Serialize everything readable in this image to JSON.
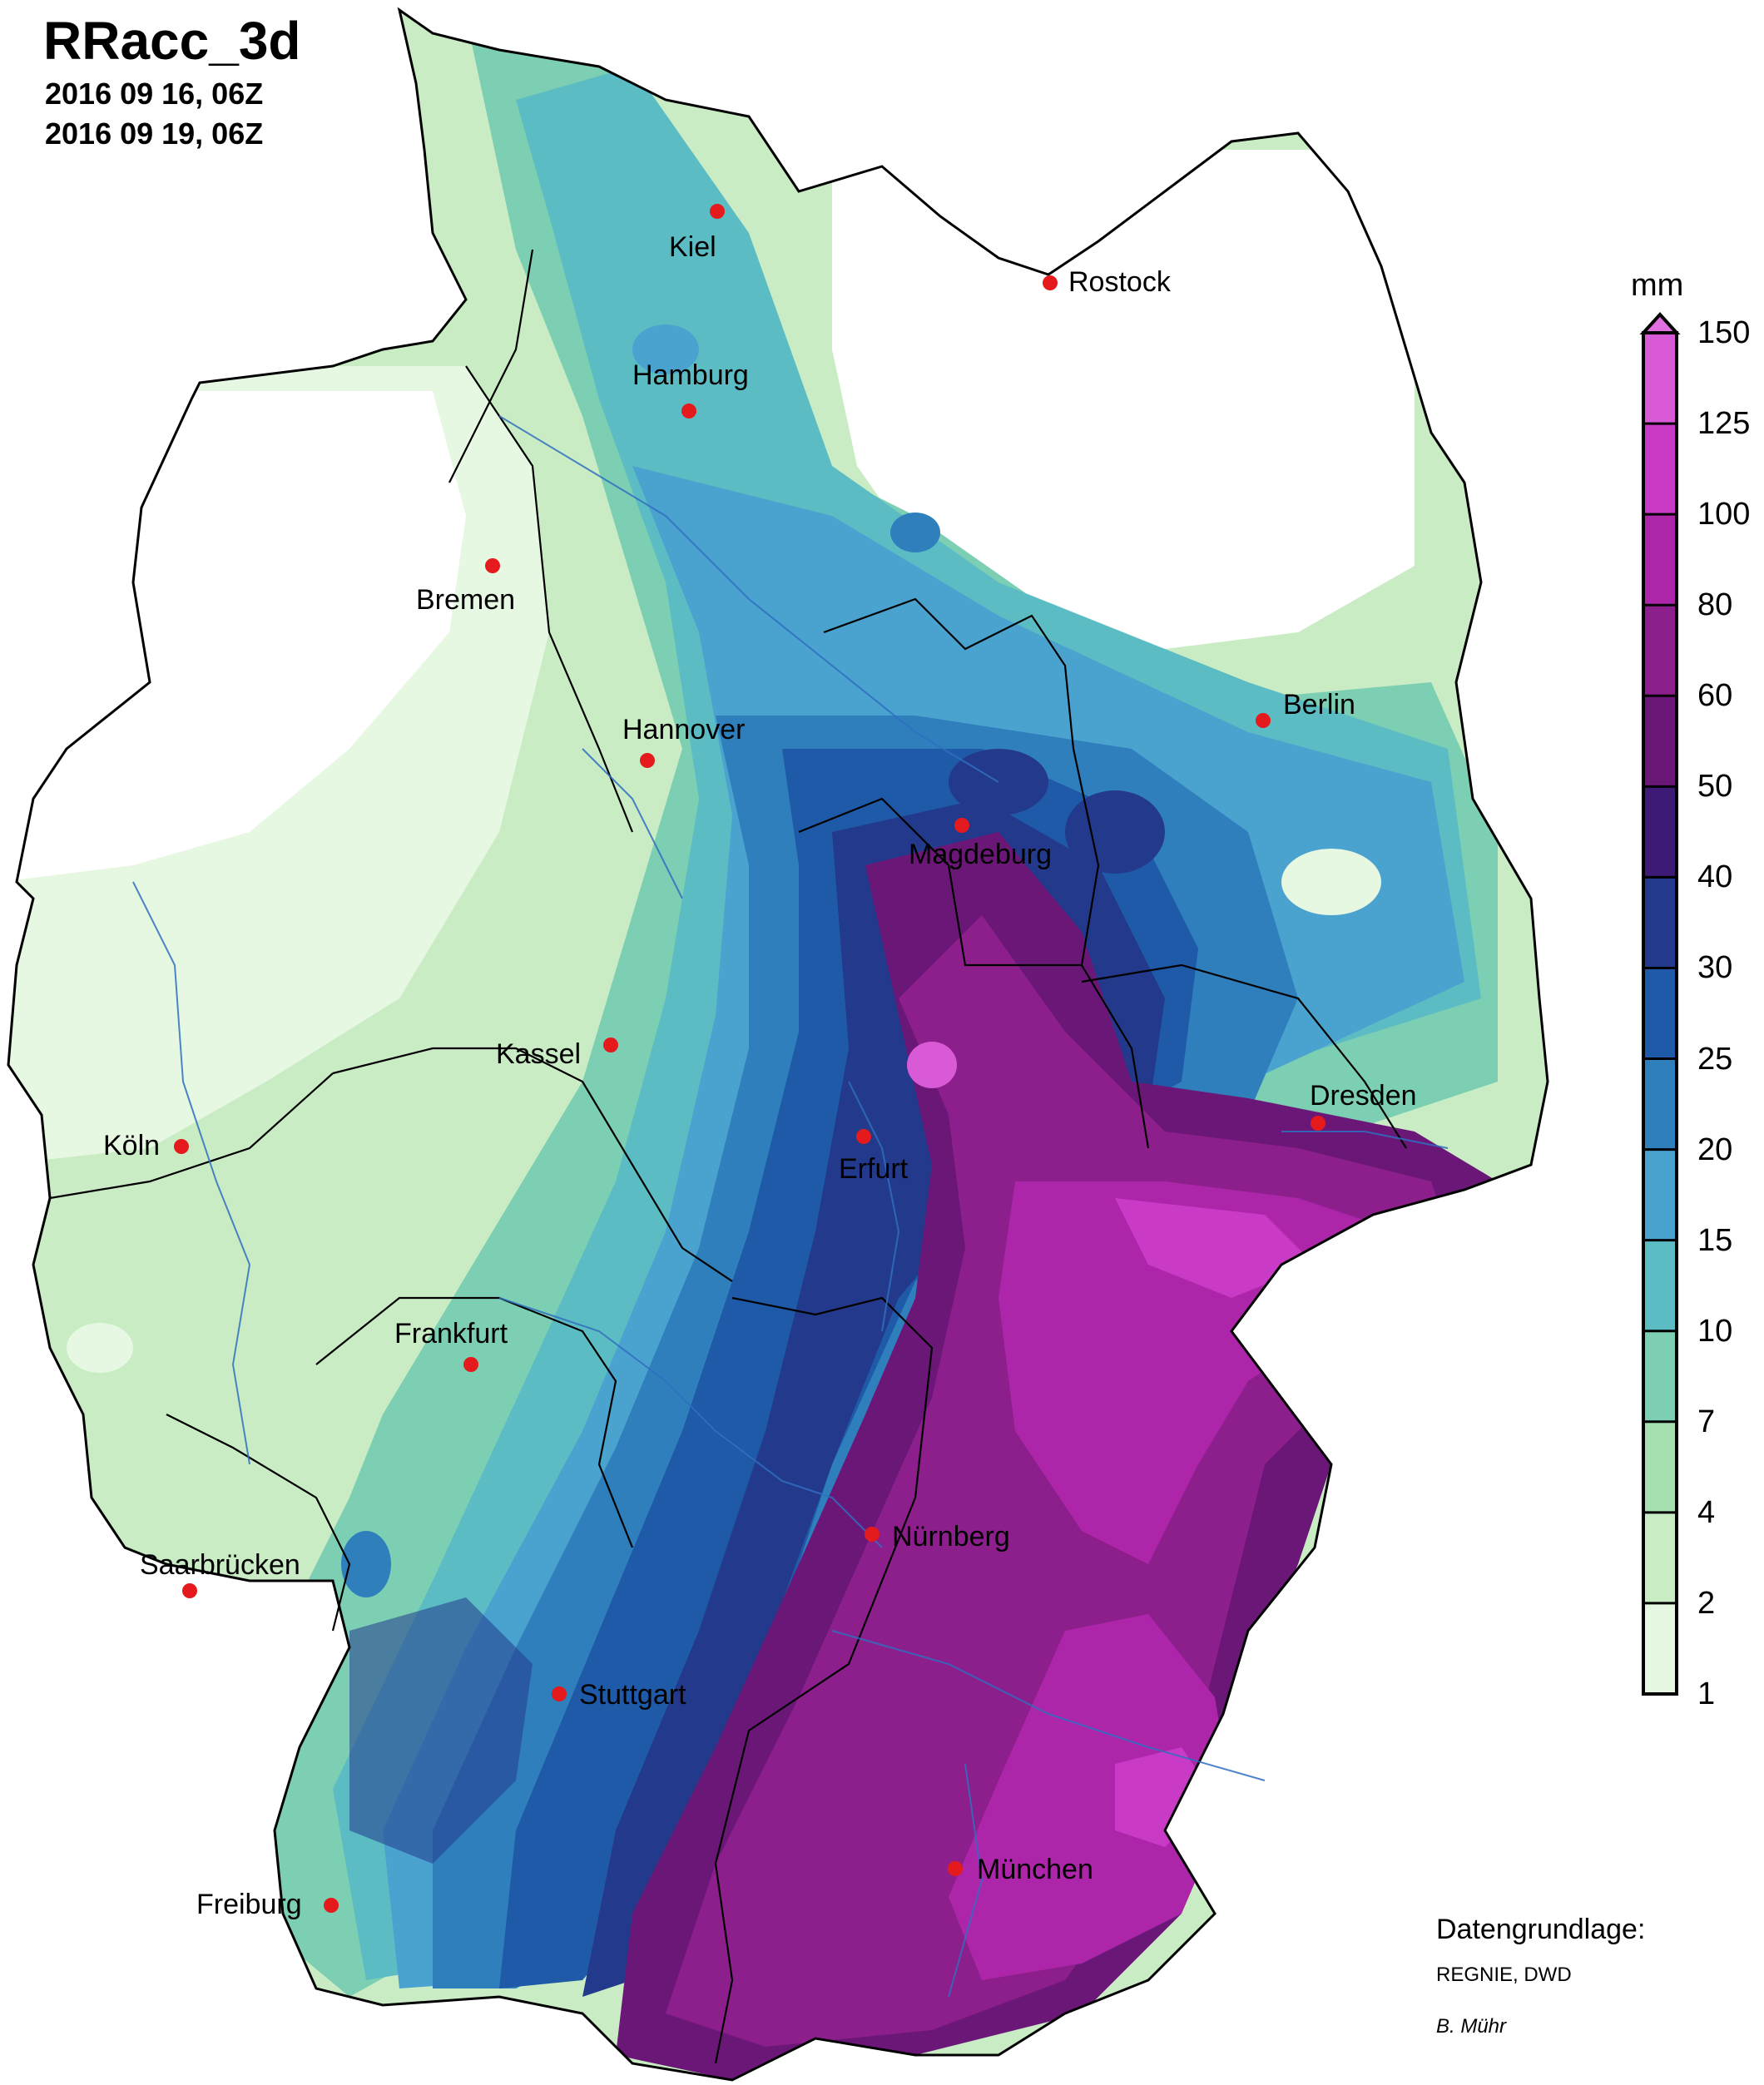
{
  "header": {
    "title": "RRacc_3d",
    "date_start": "2016 09 16, 06Z",
    "date_end": "2016 09 19, 06Z"
  },
  "legend": {
    "unit": "mm",
    "ticks": [
      "150",
      "125",
      "100",
      "80",
      "60",
      "50",
      "40",
      "30",
      "25",
      "20",
      "15",
      "10",
      "7",
      "4",
      "2",
      "1"
    ],
    "colors": [
      "#d95ad6",
      "#c93bc6",
      "#ad25a8",
      "#8c1f8b",
      "#6b1778",
      "#3c1a75",
      "#233a8c",
      "#1f5aa8",
      "#2f7fbd",
      "#4aa3cf",
      "#5cbcc4",
      "#7ccfb3",
      "#a6dfb0",
      "#c9ecc4",
      "#e6f7e2"
    ]
  },
  "cities": [
    {
      "name": "Kiel"
    },
    {
      "name": "Rostock"
    },
    {
      "name": "Hamburg"
    },
    {
      "name": "Bremen"
    },
    {
      "name": "Berlin"
    },
    {
      "name": "Hannover"
    },
    {
      "name": "Magdeburg"
    },
    {
      "name": "Kassel"
    },
    {
      "name": "Dresden"
    },
    {
      "name": "Köln"
    },
    {
      "name": "Erfurt"
    },
    {
      "name": "Frankfurt"
    },
    {
      "name": "Nürnberg"
    },
    {
      "name": "Saarbrücken"
    },
    {
      "name": "Stuttgart"
    },
    {
      "name": "Freiburg"
    },
    {
      "name": "München"
    }
  ],
  "credits": {
    "line1": "Datengrundlage:",
    "line2": "REGNIE, DWD",
    "line3": "B. Mühr"
  }
}
